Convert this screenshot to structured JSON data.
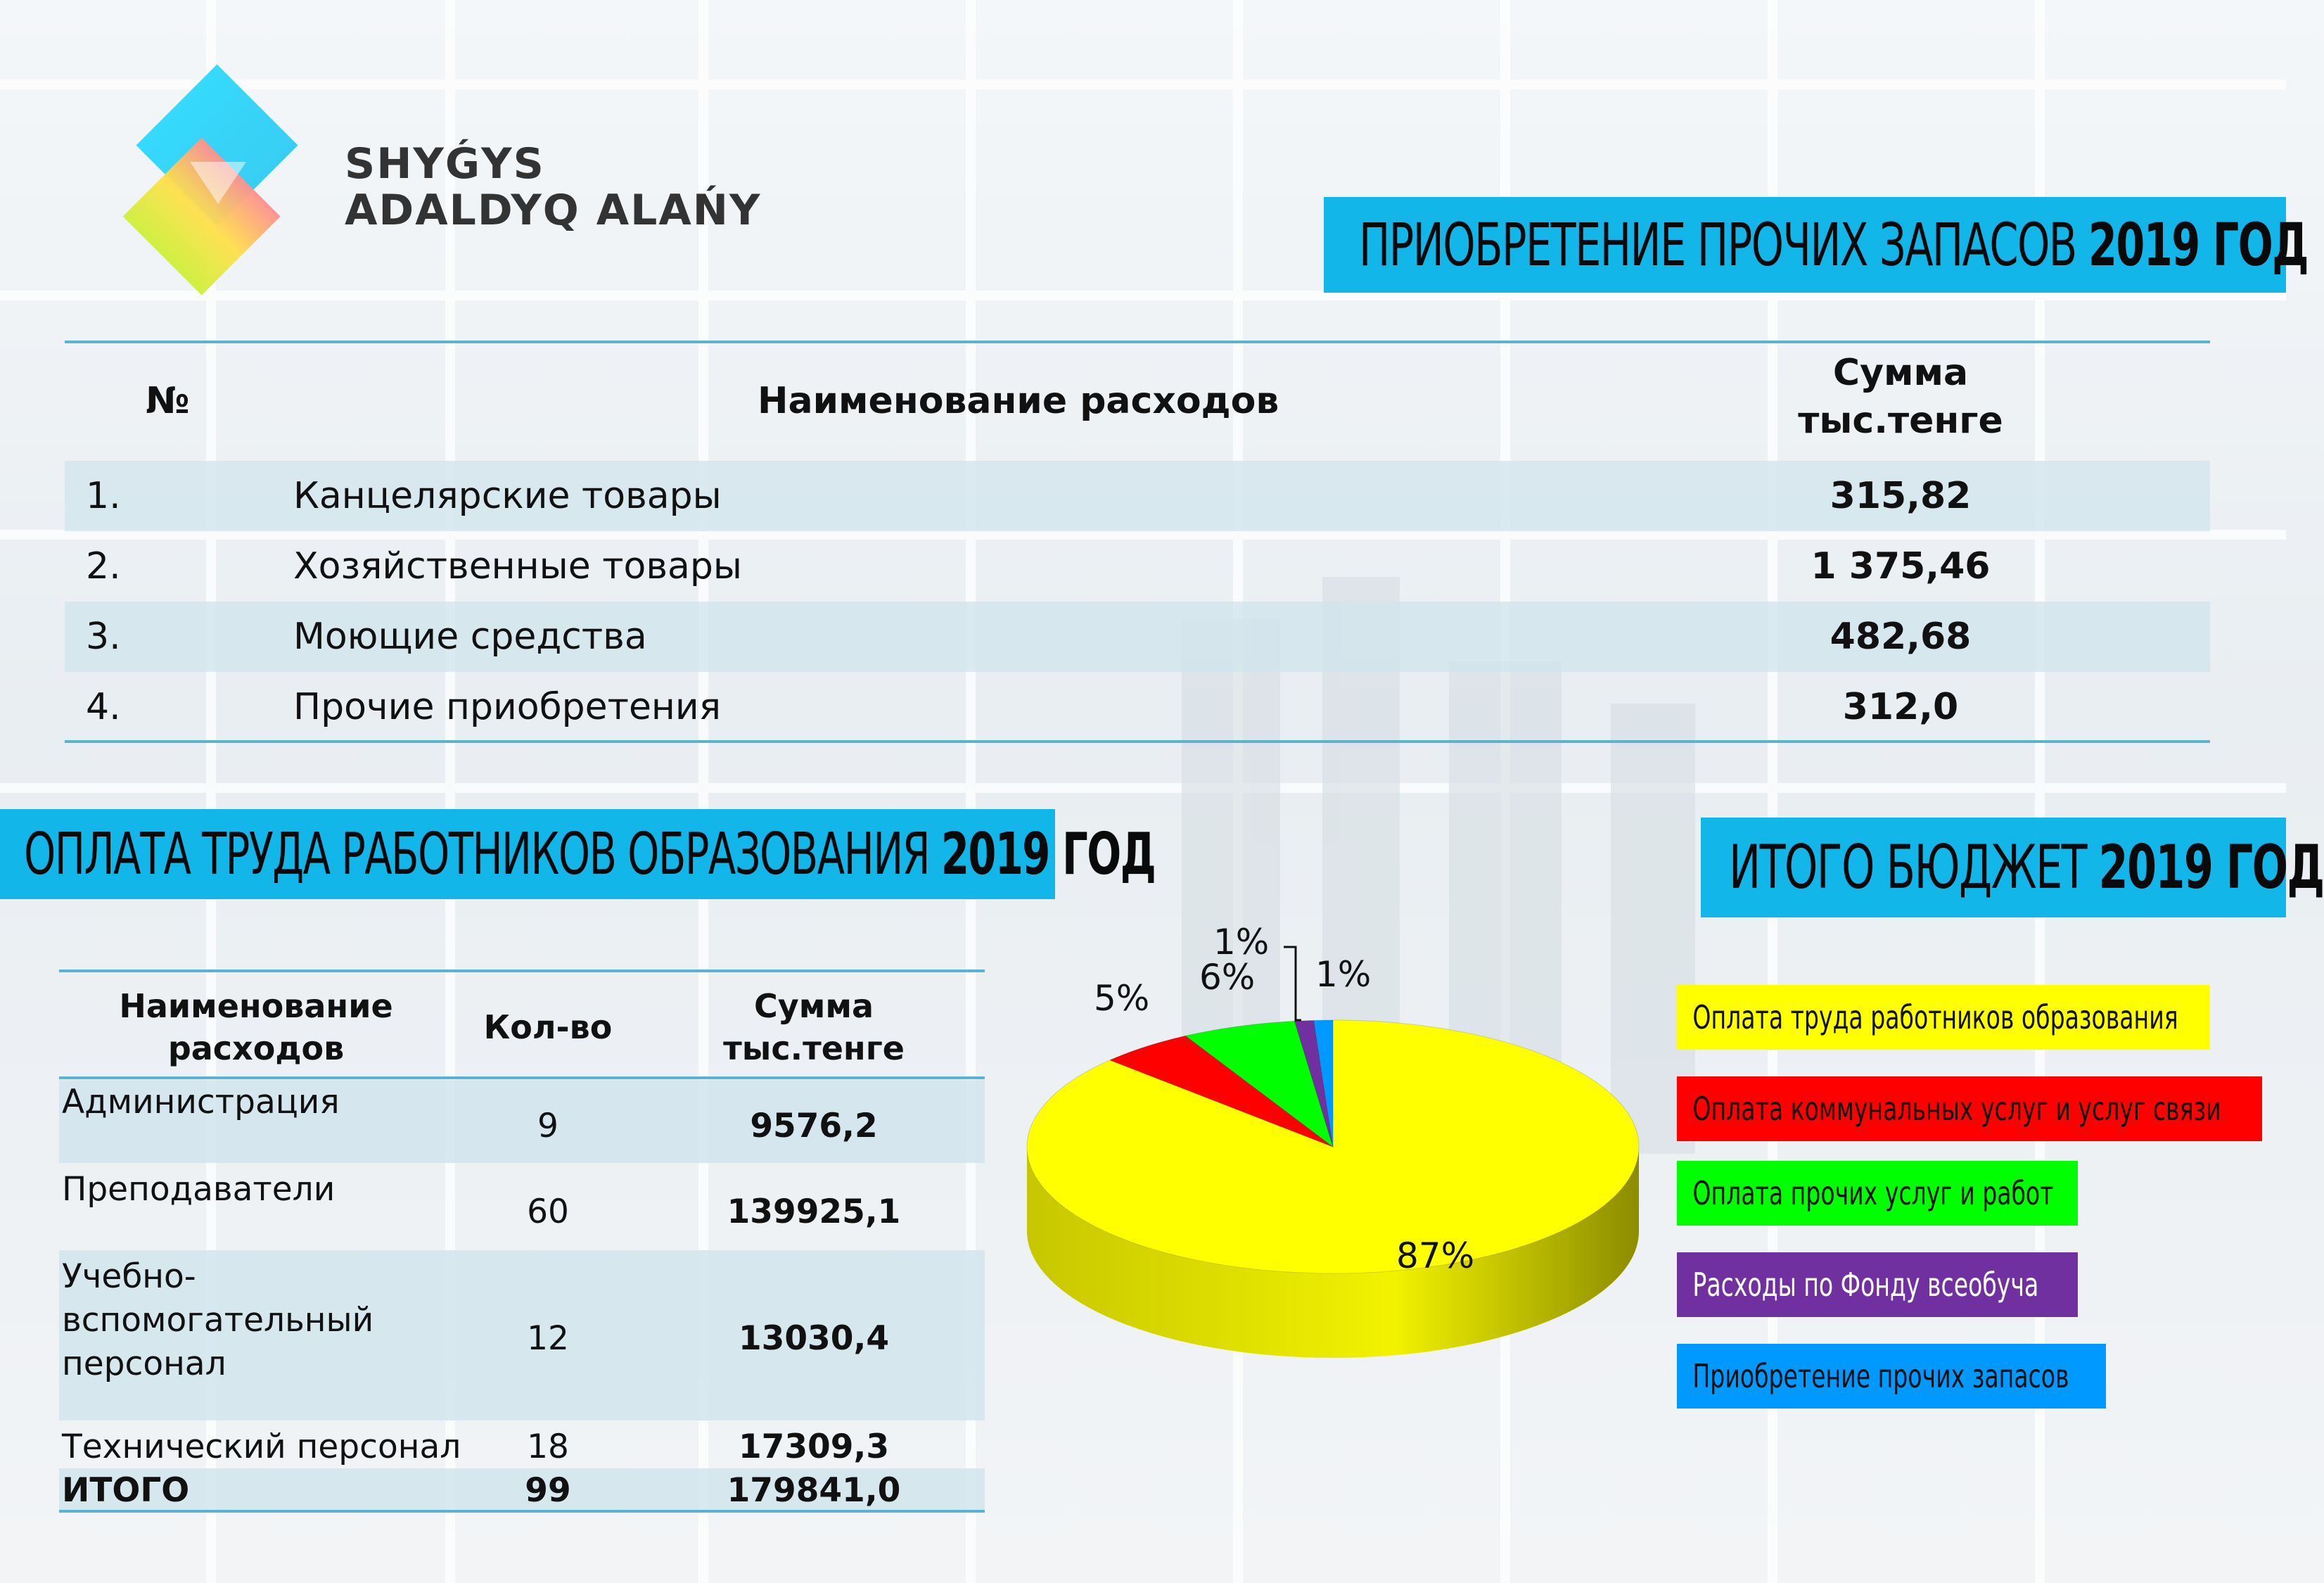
{
  "logo": {
    "line1": "SHYǴYS",
    "line2": "ADALDYQ ALAŃY"
  },
  "supplies": {
    "title_main": "ПРИОБРЕТЕНИЕ ПРОЧИХ ЗАПАСОВ",
    "title_year": "2019 ГОД",
    "headers": {
      "num": "№",
      "name": "Наименование расходов",
      "sum_line1": "Сумма",
      "sum_line2": "тыс.тенге"
    },
    "rows": [
      {
        "num": "1.",
        "name": "Канцелярские товары",
        "sum": "315,82"
      },
      {
        "num": "2.",
        "name": "Хозяйственные товары",
        "sum": "1 375,46"
      },
      {
        "num": "3.",
        "name": "Моющие средства",
        "sum": "482,68"
      },
      {
        "num": "4.",
        "name": "Прочие приобретения",
        "sum": "312,0"
      }
    ]
  },
  "salary": {
    "title_main": "ОПЛАТА ТРУДА РАБОТНИКОВ ОБРАЗОВАНИЯ",
    "title_year": "2019 ГОД",
    "headers": {
      "name_line1": "Наименование",
      "name_line2": "расходов",
      "count": "Кол-во",
      "sum_line1": "Сумма",
      "sum_line2": "тыс.тенге"
    },
    "rows": [
      {
        "name": [
          "Администрация"
        ],
        "count": "9",
        "sum": "9576,2"
      },
      {
        "name": [
          "Преподаватели"
        ],
        "count": "60",
        "sum": "139925,1"
      },
      {
        "name": [
          "Учебно-",
          "вспомогательный",
          "персонал"
        ],
        "count": "12",
        "sum": "13030,4"
      },
      {
        "name": [
          "Технический персонал"
        ],
        "count": "18",
        "sum": "17309,3"
      }
    ],
    "total": {
      "name": "ИТОГО",
      "count": "99",
      "sum": "179841,0"
    }
  },
  "budget": {
    "title_main": "ИТОГО БЮДЖЕТ",
    "title_year": "2019 ГОД"
  },
  "chart_data": {
    "type": "pie",
    "title": "ИТОГО БЮДЖЕТ 2019 ГОД",
    "slices": [
      {
        "label": "Оплата труда работников образования",
        "value": 87,
        "value_label": "87%",
        "color": "#ffff00"
      },
      {
        "label": "Оплата коммунальных услуг и услуг связи",
        "value": 5,
        "value_label": "5%",
        "color": "#ff0000"
      },
      {
        "label": "Оплата прочих услуг и работ",
        "value": 6,
        "value_label": "6%",
        "color": "#00ff00"
      },
      {
        "label": "Расходы по Фонду всеобуча",
        "value": 1,
        "value_label": "1%",
        "color": "#7030a0"
      },
      {
        "label": "Приобретение прочих запасов",
        "value": 1,
        "value_label": "1%",
        "color": "#0099ff"
      }
    ],
    "legend_position": "right"
  }
}
